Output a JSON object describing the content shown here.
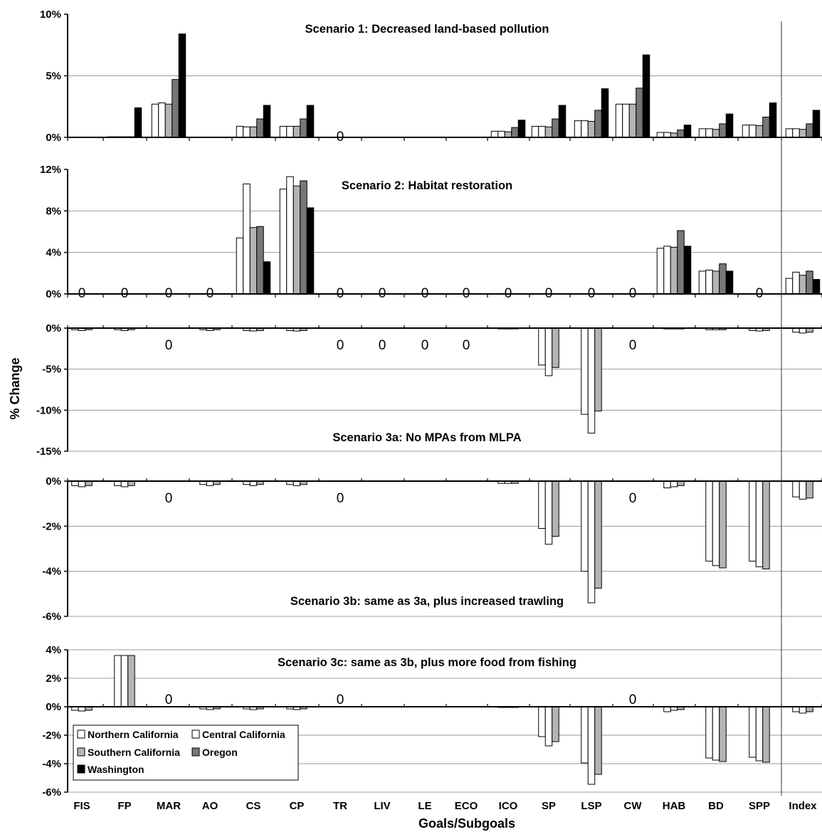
{
  "chart_data": {
    "type": "bar",
    "ylabel": "% Change",
    "xlabel": "Goals/Subgoals",
    "categories": [
      "FIS",
      "FP",
      "MAR",
      "AO",
      "CS",
      "CP",
      "TR",
      "LIV",
      "LE",
      "ECO",
      "ICO",
      "SP",
      "LSP",
      "CW",
      "HAB",
      "BD",
      "SPP",
      "Index"
    ],
    "series_names": [
      "Northern California",
      "Central California",
      "Southern California",
      "Oregon",
      "Washington"
    ],
    "colors": [
      "#ffffff",
      "#ffffff",
      "#b4b4b4",
      "#777777",
      "#000000"
    ],
    "legend_position": "bottom-left",
    "zero_marker": "0",
    "panels": [
      {
        "title": "Scenario 1: Decreased land-based pollution",
        "ylim": [
          0,
          10
        ],
        "yticks": [
          0,
          5,
          10
        ],
        "ytick_labels": [
          "0%",
          "5%",
          "10%"
        ],
        "zero_labels": [
          "TR"
        ],
        "values": [
          [
            0,
            0,
            0,
            0,
            0
          ],
          [
            0.05,
            0.05,
            0.05,
            0.05,
            2.4
          ],
          [
            2.7,
            2.8,
            2.7,
            4.7,
            8.4
          ],
          [
            0,
            0,
            0,
            0,
            0
          ],
          [
            0.9,
            0.85,
            0.85,
            1.5,
            2.6
          ],
          [
            0.9,
            0.9,
            0.9,
            1.5,
            2.6
          ],
          [
            0,
            0,
            0,
            0,
            0
          ],
          [
            0,
            0,
            0,
            0,
            0
          ],
          [
            0,
            0,
            0,
            0,
            0
          ],
          [
            0,
            0,
            0,
            0,
            0
          ],
          [
            0.5,
            0.5,
            0.45,
            0.8,
            1.4
          ],
          [
            0.9,
            0.9,
            0.85,
            1.5,
            2.6
          ],
          [
            1.35,
            1.35,
            1.3,
            2.2,
            3.95
          ],
          [
            2.7,
            2.7,
            2.7,
            4.0,
            6.7
          ],
          [
            0.4,
            0.4,
            0.35,
            0.6,
            1.0
          ],
          [
            0.7,
            0.7,
            0.65,
            1.1,
            1.9
          ],
          [
            1.0,
            1.0,
            0.95,
            1.65,
            2.8
          ],
          [
            0.7,
            0.7,
            0.65,
            1.1,
            2.2
          ]
        ]
      },
      {
        "title": "Scenario 2: Habitat restoration",
        "ylim": [
          0,
          12
        ],
        "yticks": [
          0,
          4,
          8,
          12
        ],
        "ytick_labels": [
          "0%",
          "4%",
          "8%",
          "12%"
        ],
        "zero_labels": [
          "FIS",
          "FP",
          "MAR",
          "AO",
          "TR",
          "LIV",
          "LE",
          "ECO",
          "ICO",
          "SP",
          "LSP",
          "CW",
          "SPP"
        ],
        "values": [
          [
            0,
            0,
            0,
            0,
            0
          ],
          [
            0,
            0,
            0,
            0,
            0
          ],
          [
            0,
            0,
            0,
            0,
            0
          ],
          [
            0,
            0,
            0,
            0,
            0
          ],
          [
            5.4,
            10.6,
            6.4,
            6.5,
            3.1
          ],
          [
            10.1,
            11.3,
            10.4,
            10.9,
            8.3
          ],
          [
            0,
            0,
            0,
            0,
            0
          ],
          [
            0,
            0,
            0,
            0,
            0
          ],
          [
            0,
            0,
            0,
            0,
            0
          ],
          [
            0,
            0,
            0,
            0,
            0
          ],
          [
            0,
            0,
            0,
            0,
            0
          ],
          [
            0,
            0,
            0,
            0,
            0
          ],
          [
            0,
            0,
            0,
            0,
            0
          ],
          [
            0,
            0,
            0,
            0,
            0
          ],
          [
            4.4,
            4.6,
            4.5,
            6.1,
            4.6
          ],
          [
            2.2,
            2.3,
            2.2,
            2.9,
            2.2
          ],
          [
            0,
            0,
            0,
            0,
            0
          ],
          [
            1.5,
            2.1,
            1.8,
            2.2,
            1.4
          ]
        ]
      },
      {
        "title": "Scenario 3a: No MPAs from MLPA",
        "ylim": [
          -15,
          0
        ],
        "yticks": [
          0,
          -5,
          -10,
          -15
        ],
        "ytick_labels": [
          "0%",
          "-5%",
          "-10%",
          "-15%"
        ],
        "zero_labels": [
          "MAR",
          "TR",
          "LIV",
          "LE",
          "ECO",
          "CW"
        ],
        "values": [
          [
            -0.2,
            -0.3,
            -0.2
          ],
          [
            -0.2,
            -0.3,
            -0.2
          ],
          [
            0,
            0,
            0
          ],
          [
            -0.2,
            -0.3,
            -0.2
          ],
          [
            -0.3,
            -0.35,
            -0.3
          ],
          [
            -0.3,
            -0.35,
            -0.3
          ],
          [
            0,
            0,
            0
          ],
          [
            0,
            0,
            0
          ],
          [
            0,
            0,
            0
          ],
          [
            0,
            0,
            0
          ],
          [
            -0.1,
            -0.1,
            -0.1
          ],
          [
            -4.5,
            -5.8,
            -4.8
          ],
          [
            -10.5,
            -12.8,
            -10.1
          ],
          [
            0,
            0,
            0
          ],
          [
            -0.1,
            -0.1,
            -0.1
          ],
          [
            -0.2,
            -0.2,
            -0.2
          ],
          [
            -0.3,
            -0.35,
            -0.3
          ],
          [
            -0.5,
            -0.6,
            -0.5
          ]
        ]
      },
      {
        "title": "Scenario 3b: same as 3a, plus increased trawling",
        "ylim": [
          -6,
          0
        ],
        "yticks": [
          0,
          -2,
          -4,
          -6
        ],
        "ytick_labels": [
          "0%",
          "-2%",
          "-4%",
          "-6%"
        ],
        "zero_labels": [
          "MAR",
          "TR",
          "CW"
        ],
        "values": [
          [
            -0.2,
            -0.25,
            -0.2
          ],
          [
            -0.2,
            -0.25,
            -0.2
          ],
          [
            0,
            0,
            0
          ],
          [
            -0.15,
            -0.2,
            -0.15
          ],
          [
            -0.15,
            -0.2,
            -0.15
          ],
          [
            -0.15,
            -0.2,
            -0.15
          ],
          [
            0,
            0,
            0
          ],
          [
            0,
            0,
            0
          ],
          [
            0,
            0,
            0
          ],
          [
            0,
            0,
            0
          ],
          [
            -0.1,
            -0.1,
            -0.1
          ],
          [
            -2.1,
            -2.8,
            -2.45
          ],
          [
            -4.0,
            -5.4,
            -4.75
          ],
          [
            0,
            0,
            0
          ],
          [
            -0.3,
            -0.25,
            -0.2
          ],
          [
            -3.55,
            -3.75,
            -3.85
          ],
          [
            -3.55,
            -3.8,
            -3.9
          ],
          [
            -0.7,
            -0.8,
            -0.75
          ]
        ]
      },
      {
        "title": "Scenario 3c: same as 3b, plus more food from fishing",
        "ylim": [
          -6,
          4
        ],
        "yticks": [
          4,
          2,
          0,
          -2,
          -4,
          -6
        ],
        "ytick_labels": [
          "4%",
          "2%",
          "0%",
          "-2%",
          "-4%",
          "-6%"
        ],
        "zero_labels": [
          "MAR",
          "TR",
          "CW"
        ],
        "values": [
          [
            -0.25,
            -0.3,
            -0.25
          ],
          [
            3.6,
            3.6,
            3.6
          ],
          [
            0,
            0,
            0
          ],
          [
            -0.15,
            -0.2,
            -0.15
          ],
          [
            -0.15,
            -0.2,
            -0.15
          ],
          [
            -0.15,
            -0.2,
            -0.15
          ],
          [
            0,
            0,
            0
          ],
          [
            0,
            0,
            0
          ],
          [
            0,
            0,
            0
          ],
          [
            0,
            0,
            0
          ],
          [
            -0.05,
            -0.05,
            -0.05
          ],
          [
            -2.1,
            -2.75,
            -2.45
          ],
          [
            -3.95,
            -5.45,
            -4.75
          ],
          [
            0,
            0,
            0
          ],
          [
            -0.35,
            -0.25,
            -0.2
          ],
          [
            -3.6,
            -3.75,
            -3.85
          ],
          [
            -3.55,
            -3.8,
            -3.9
          ],
          [
            -0.35,
            -0.45,
            -0.35
          ]
        ]
      }
    ]
  }
}
